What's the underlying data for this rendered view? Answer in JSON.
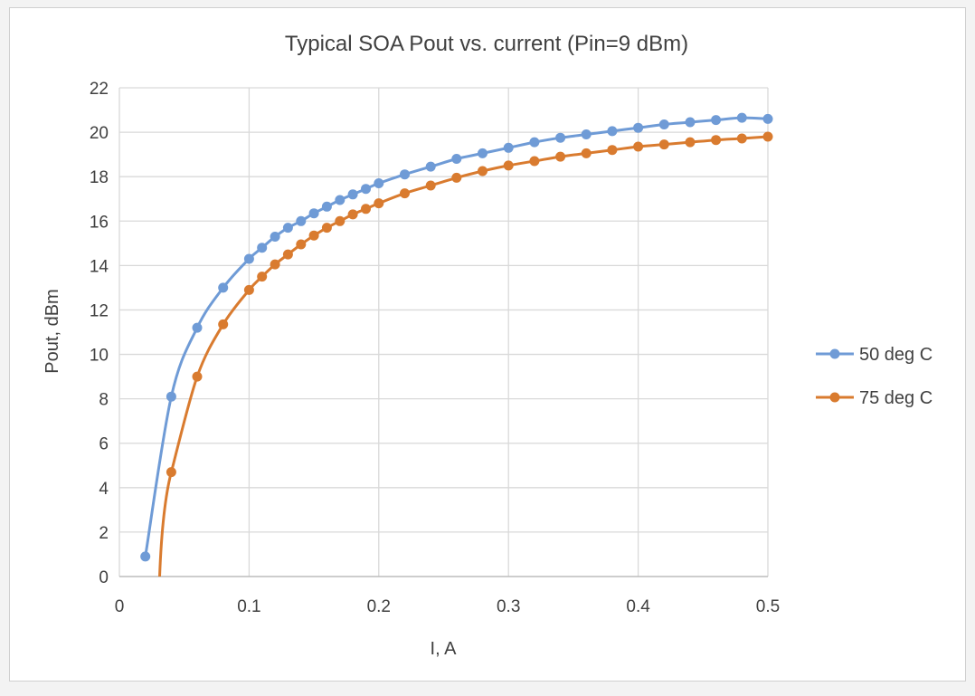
{
  "chart_data": {
    "type": "line",
    "title": "Typical SOA Pout vs. current (Pin=9 dBm)",
    "xlabel": "I, A",
    "ylabel": "Pout, dBm",
    "xlim": [
      0,
      0.5
    ],
    "ylim": [
      0,
      22
    ],
    "x_ticks": [
      "0",
      "0.1",
      "0.2",
      "0.3",
      "0.4",
      "0.5"
    ],
    "y_ticks": [
      "0",
      "2",
      "4",
      "6",
      "8",
      "10",
      "12",
      "14",
      "16",
      "18",
      "20",
      "22"
    ],
    "grid": true,
    "legend_position": "right",
    "series": [
      {
        "name": "50 deg C",
        "color": "#6f9bd6",
        "x": [
          0.02,
          0.04,
          0.06,
          0.08,
          0.1,
          0.11,
          0.12,
          0.13,
          0.14,
          0.15,
          0.16,
          0.17,
          0.18,
          0.19,
          0.2,
          0.22,
          0.24,
          0.26,
          0.28,
          0.3,
          0.32,
          0.34,
          0.36,
          0.38,
          0.4,
          0.42,
          0.44,
          0.46,
          0.48,
          0.5
        ],
        "y": [
          0.9,
          8.1,
          11.2,
          13.0,
          14.3,
          14.8,
          15.3,
          15.7,
          16.0,
          16.35,
          16.65,
          16.95,
          17.2,
          17.45,
          17.7,
          18.1,
          18.45,
          18.8,
          19.05,
          19.3,
          19.55,
          19.75,
          19.9,
          20.05,
          20.2,
          20.35,
          20.45,
          20.55,
          20.65,
          20.6
        ]
      },
      {
        "name": "75 deg C",
        "color": "#d97b2f",
        "x": [
          0.04,
          0.06,
          0.08,
          0.1,
          0.11,
          0.12,
          0.13,
          0.14,
          0.15,
          0.16,
          0.17,
          0.18,
          0.19,
          0.2,
          0.22,
          0.24,
          0.26,
          0.28,
          0.3,
          0.32,
          0.34,
          0.36,
          0.38,
          0.4,
          0.42,
          0.44,
          0.46,
          0.48,
          0.5
        ],
        "y": [
          4.7,
          9.0,
          11.35,
          12.9,
          13.5,
          14.05,
          14.5,
          14.95,
          15.35,
          15.7,
          16.0,
          16.3,
          16.55,
          16.8,
          17.25,
          17.6,
          17.95,
          18.25,
          18.5,
          18.7,
          18.9,
          19.05,
          19.2,
          19.35,
          19.45,
          19.55,
          19.65,
          19.72,
          19.8
        ]
      }
    ]
  }
}
